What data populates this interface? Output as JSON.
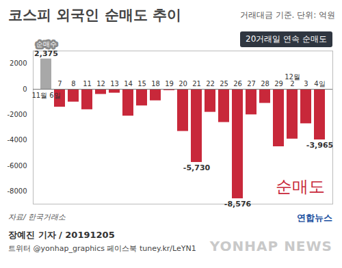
{
  "chart_data": {
    "type": "bar",
    "title": "코스피 외국인 순매도 추이",
    "subtitle": "거래대금 기준. 단위: 억원",
    "categories": [
      "11월 6일",
      "7",
      "8",
      "11",
      "12",
      "13",
      "14",
      "15",
      "18",
      "19",
      "20",
      "21",
      "22",
      "25",
      "26",
      "27",
      "28",
      "29",
      "12월\n2",
      "3",
      "4일"
    ],
    "values": [
      2375,
      -1400,
      -1000,
      -1600,
      -400,
      -300,
      -2100,
      -1300,
      -900,
      -100,
      -3300,
      -5730,
      -1800,
      -2600,
      -8576,
      -2000,
      -1100,
      -4500,
      -3900,
      -2700,
      -3965
    ],
    "value_labels": [
      "2,375",
      null,
      null,
      null,
      null,
      null,
      null,
      null,
      null,
      null,
      null,
      "-5,730",
      null,
      null,
      "-8,576",
      null,
      null,
      null,
      null,
      null,
      "-3,965"
    ],
    "colors": [
      "#a8a8a8",
      "#c8283a",
      "#c8283a",
      "#c8283a",
      "#c8283a",
      "#c8283a",
      "#c8283a",
      "#c8283a",
      "#c8283a",
      "#c8283a",
      "#c8283a",
      "#c8283a",
      "#c8283a",
      "#c8283a",
      "#c8283a",
      "#c8283a",
      "#c8283a",
      "#c8283a",
      "#c8283a",
      "#c8283a",
      "#c8283a"
    ],
    "ylim": [
      -9000,
      3000
    ],
    "yticks": [
      -8000,
      -6000,
      -4000,
      -2000,
      0,
      2000
    ],
    "grid": false,
    "data_labels": true,
    "annotations": [
      "순매수",
      "20거래일 연속 순매도",
      "순매도"
    ],
    "source": "자료/ 한국거래소",
    "byline": "장예진 기자 / 20191205",
    "social": "트위터 @yonhap_graphics 페이스북 tuney.kr/LeYN1",
    "logo": "연합뉴스",
    "watermark": "YONHAP NEWS"
  }
}
